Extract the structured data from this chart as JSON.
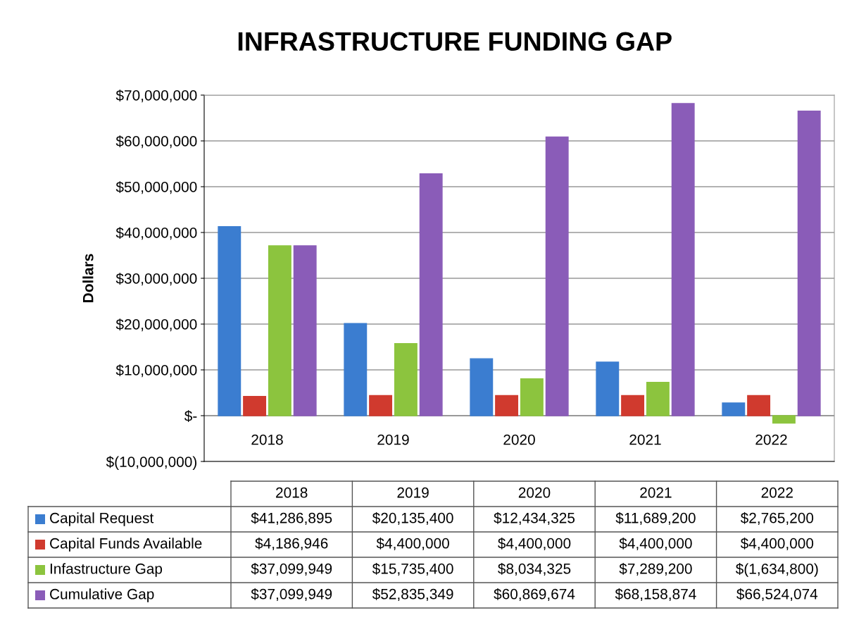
{
  "chart_data": {
    "type": "bar",
    "title": "INFRASTRUCTURE FUNDING GAP",
    "ylabel": "Dollars",
    "categories": [
      "2018",
      "2019",
      "2020",
      "2021",
      "2022"
    ],
    "series": [
      {
        "name": "Capital Request",
        "color": "#3b7dd0",
        "values": [
          41286895,
          20135400,
          12434325,
          11689200,
          2765200
        ],
        "value_labels": [
          "$41,286,895",
          "$20,135,400",
          "$12,434,325",
          "$11,689,200",
          "$2,765,200"
        ]
      },
      {
        "name": "Capital Funds Available",
        "color": "#d03a2e",
        "values": [
          4186946,
          4400000,
          4400000,
          4400000,
          4400000
        ],
        "value_labels": [
          "$4,186,946",
          "$4,400,000",
          "$4,400,000",
          "$4,400,000",
          "$4,400,000"
        ]
      },
      {
        "name": "Infastructure Gap",
        "color": "#8cc43e",
        "values": [
          37099949,
          15735400,
          8034325,
          7289200,
          -1634800
        ],
        "value_labels": [
          "$37,099,949",
          "$15,735,400",
          "$8,034,325",
          "$7,289,200",
          "$(1,634,800)"
        ]
      },
      {
        "name": "Cumulative Gap",
        "color": "#8a5cb8",
        "values": [
          37099949,
          52835349,
          60869674,
          68158874,
          66524074
        ],
        "value_labels": [
          "$37,099,949",
          "$52,835,349",
          "$60,869,674",
          "$68,158,874",
          "$66,524,074"
        ]
      }
    ],
    "ylim": [
      -10000000,
      70000000
    ],
    "yticks": [
      {
        "value": -10000000,
        "label": "$(10,000,000)"
      },
      {
        "value": 0,
        "label": "$-"
      },
      {
        "value": 10000000,
        "label": "$10,000,000"
      },
      {
        "value": 20000000,
        "label": "$20,000,000"
      },
      {
        "value": 30000000,
        "label": "$30,000,000"
      },
      {
        "value": 40000000,
        "label": "$40,000,000"
      },
      {
        "value": 50000000,
        "label": "$50,000,000"
      },
      {
        "value": 60000000,
        "label": "$60,000,000"
      },
      {
        "value": 70000000,
        "label": "$70,000,000"
      }
    ],
    "grid": "y",
    "legend": "bottom"
  }
}
